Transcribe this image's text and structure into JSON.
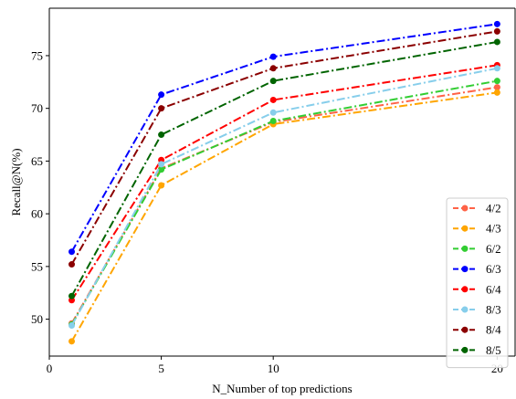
{
  "chart_data": {
    "type": "line",
    "title": "",
    "xlabel": "N_Number of top predictions",
    "ylabel": "Recall@N(%)",
    "x": [
      1,
      5,
      10,
      20
    ],
    "xlim": [
      0,
      20.8
    ],
    "ylim": [
      46.5,
      79.5
    ],
    "xticks": [
      0,
      5,
      10,
      20
    ],
    "yticks": [
      50,
      55,
      60,
      65,
      70,
      75
    ],
    "grid": false,
    "legend_position": "lower-right",
    "series": [
      {
        "name": "4/2",
        "color": "#FF6347",
        "values": [
          49.6,
          64.3,
          68.7,
          72.0
        ]
      },
      {
        "name": "4/3",
        "color": "#FFA500",
        "values": [
          47.9,
          62.7,
          68.5,
          71.5
        ]
      },
      {
        "name": "6/2",
        "color": "#32CD32",
        "values": [
          49.5,
          64.2,
          68.8,
          72.6
        ]
      },
      {
        "name": "6/3",
        "color": "#0000FF",
        "values": [
          56.4,
          71.3,
          74.9,
          78.0
        ]
      },
      {
        "name": "6/4",
        "color": "#FF0000",
        "values": [
          51.8,
          65.1,
          70.8,
          74.1
        ]
      },
      {
        "name": "8/3",
        "color": "#87CEEB",
        "values": [
          49.4,
          64.7,
          69.6,
          73.8
        ]
      },
      {
        "name": "8/4",
        "color": "#8B0000",
        "values": [
          55.2,
          70.0,
          73.8,
          77.3
        ]
      },
      {
        "name": "8/5",
        "color": "#006400",
        "values": [
          52.2,
          67.5,
          72.6,
          76.3
        ]
      }
    ]
  }
}
